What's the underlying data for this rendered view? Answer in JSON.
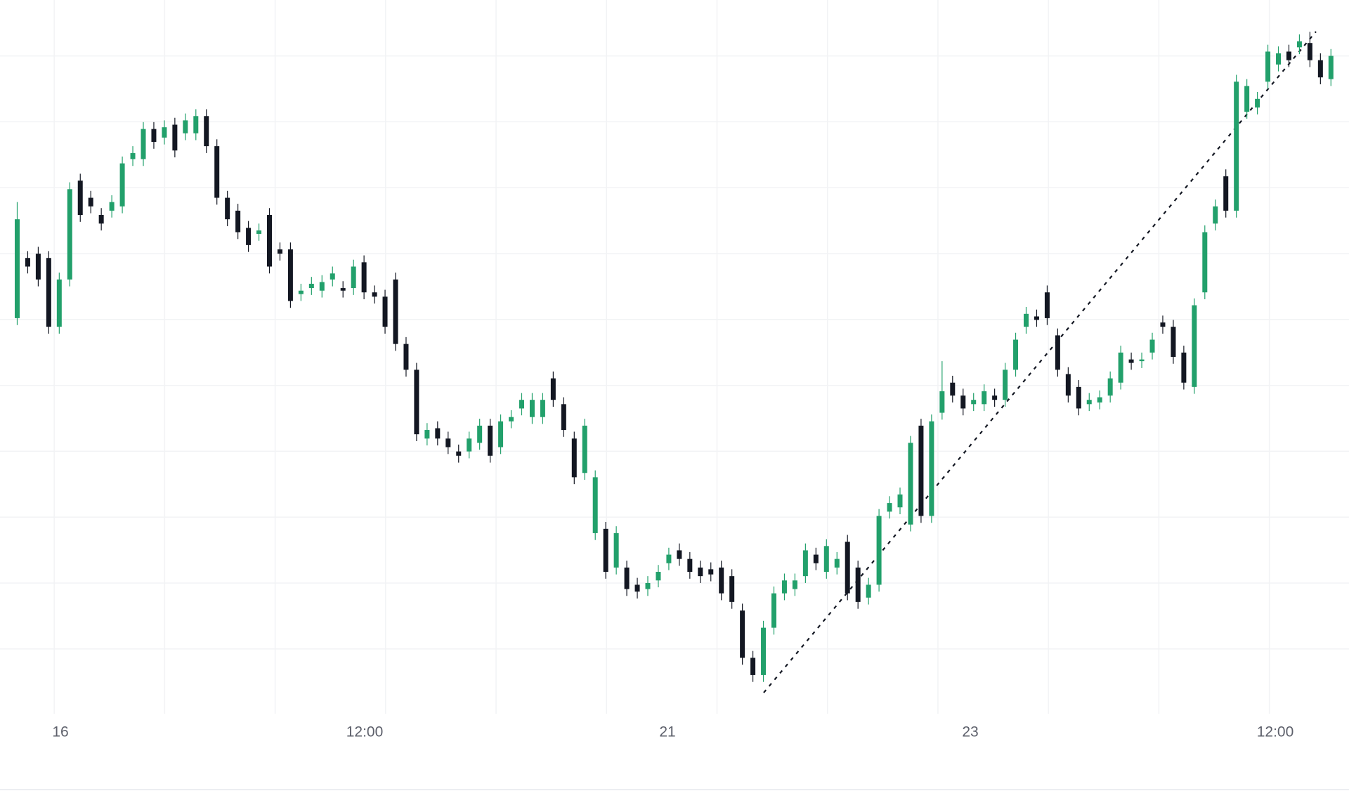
{
  "chart_data": {
    "type": "candlestick",
    "xtick_labels": [
      "16",
      "12:00",
      "21",
      "23",
      "12:00"
    ],
    "up_color": "#22a06b",
    "down_color": "#131722",
    "ylim": [
      0,
      830
    ],
    "grid": true,
    "open": [
      460,
      530,
      535,
      530,
      450,
      505,
      620,
      600,
      580,
      585,
      590,
      645,
      645,
      680,
      670,
      685,
      675,
      675,
      695,
      660,
      600,
      585,
      565,
      558,
      580,
      540,
      540,
      488,
      495,
      492,
      505,
      495,
      495,
      525,
      490,
      485,
      505,
      430,
      400,
      320,
      332,
      320,
      305,
      305,
      315,
      335,
      310,
      340,
      355,
      345,
      345,
      390,
      360,
      320,
      280,
      210,
      215,
      170,
      170,
      150,
      145,
      155,
      175,
      190,
      180,
      170,
      168,
      170,
      160,
      120,
      65,
      45,
      100,
      140,
      145,
      160,
      185,
      165,
      170,
      200,
      170,
      135,
      150,
      235,
      240,
      220,
      335,
      230,
      350,
      385,
      370,
      360,
      360,
      370,
      365,
      400,
      450,
      462,
      490,
      440,
      395,
      380,
      360,
      362,
      370,
      385,
      412,
      410,
      420,
      455,
      450,
      420,
      380,
      490,
      570,
      625,
      585,
      700,
      705,
      735,
      755,
      770,
      775,
      780,
      760,
      738
    ],
    "high": [
      595,
      538,
      543,
      538,
      513,
      618,
      628,
      608,
      588,
      603,
      648,
      660,
      688,
      688,
      690,
      693,
      698,
      703,
      703,
      668,
      608,
      593,
      573,
      570,
      588,
      548,
      548,
      500,
      508,
      510,
      520,
      503,
      528,
      533,
      498,
      493,
      513,
      438,
      408,
      338,
      340,
      328,
      313,
      328,
      343,
      343,
      348,
      353,
      373,
      373,
      373,
      398,
      368,
      328,
      343,
      283,
      223,
      218,
      178,
      158,
      160,
      173,
      193,
      198,
      188,
      178,
      176,
      178,
      168,
      128,
      73,
      108,
      148,
      163,
      163,
      198,
      193,
      203,
      188,
      208,
      178,
      158,
      238,
      253,
      263,
      323,
      343,
      348,
      410,
      393,
      378,
      373,
      383,
      378,
      408,
      443,
      473,
      470,
      498,
      448,
      403,
      388,
      373,
      376,
      398,
      428,
      420,
      420,
      443,
      463,
      458,
      428,
      483,
      568,
      598,
      633,
      743,
      738,
      723,
      778,
      776,
      778,
      790,
      793,
      768,
      773
    ],
    "low": [
      452,
      512,
      497,
      442,
      442,
      497,
      572,
      582,
      562,
      577,
      582,
      637,
      637,
      657,
      662,
      647,
      667,
      667,
      652,
      592,
      567,
      552,
      537,
      550,
      512,
      527,
      472,
      480,
      487,
      484,
      497,
      484,
      487,
      482,
      477,
      442,
      422,
      392,
      317,
      312,
      312,
      302,
      292,
      297,
      307,
      292,
      302,
      332,
      347,
      337,
      337,
      357,
      322,
      267,
      272,
      202,
      157,
      162,
      137,
      134,
      137,
      147,
      167,
      172,
      157,
      152,
      154,
      132,
      122,
      57,
      37,
      37,
      92,
      132,
      137,
      152,
      167,
      157,
      162,
      132,
      122,
      127,
      142,
      227,
      232,
      212,
      222,
      222,
      342,
      362,
      347,
      352,
      352,
      357,
      357,
      392,
      442,
      450,
      452,
      392,
      362,
      347,
      352,
      354,
      362,
      377,
      400,
      402,
      412,
      442,
      407,
      377,
      372,
      482,
      562,
      577,
      577,
      692,
      697,
      727,
      747,
      752,
      767,
      752,
      732,
      730
    ],
    "close": [
      575,
      520,
      505,
      450,
      505,
      610,
      580,
      590,
      570,
      595,
      640,
      652,
      680,
      665,
      682,
      655,
      690,
      695,
      660,
      600,
      575,
      560,
      545,
      562,
      520,
      535,
      480,
      492,
      500,
      502,
      512,
      492,
      520,
      490,
      485,
      450,
      430,
      400,
      325,
      330,
      320,
      310,
      300,
      320,
      335,
      300,
      340,
      345,
      365,
      365,
      365,
      365,
      330,
      275,
      335,
      275,
      165,
      210,
      145,
      142,
      152,
      165,
      185,
      180,
      165,
      160,
      162,
      140,
      130,
      65,
      45,
      100,
      140,
      155,
      155,
      190,
      175,
      195,
      180,
      140,
      130,
      150,
      230,
      245,
      255,
      315,
      230,
      340,
      375,
      370,
      355,
      365,
      375,
      365,
      400,
      435,
      465,
      458,
      460,
      400,
      370,
      355,
      365,
      368,
      390,
      420,
      408,
      412,
      435,
      450,
      415,
      385,
      475,
      560,
      590,
      585,
      735,
      730,
      715,
      770,
      768,
      760,
      782,
      760,
      740,
      765
    ]
  }
}
